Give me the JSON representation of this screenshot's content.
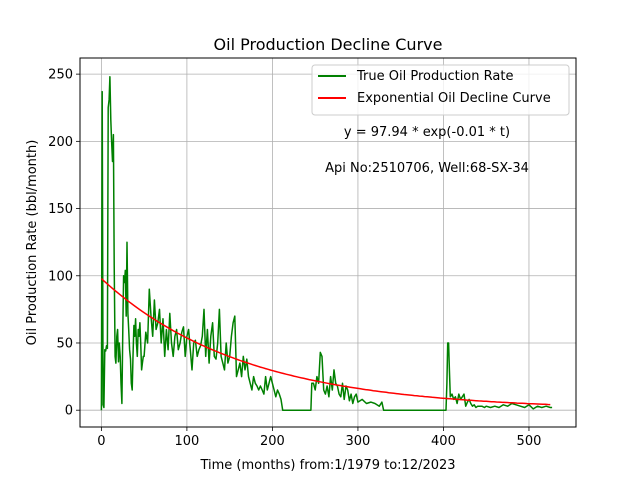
{
  "chart_data": {
    "type": "line",
    "title": "Oil Production Decline Curve",
    "xlabel": "Time (months) from:1/1979 to:12/2023",
    "ylabel": "Oil Production Rate (bbl/month)",
    "xlim": [
      -25,
      555
    ],
    "ylim": [
      -12.5,
      262
    ],
    "xticks": [
      0,
      100,
      200,
      300,
      400,
      500
    ],
    "yticks": [
      0,
      50,
      100,
      150,
      200,
      250
    ],
    "grid": true,
    "legend_placement": "top-right",
    "annotations": [
      "y = 97.94 * exp(-0.01 * t)",
      "Api No:2510706, Well:68-SX-34"
    ],
    "fit": {
      "a": 97.94,
      "b": 0.006,
      "t_start": 0,
      "t_end": 527
    },
    "series": [
      {
        "name": "True Oil Production Rate",
        "color": "#008000",
        "points": [
          [
            0,
            0
          ],
          [
            1,
            237
          ],
          [
            2,
            4
          ],
          [
            3,
            2
          ],
          [
            4,
            45
          ],
          [
            5,
            44
          ],
          [
            6,
            48
          ],
          [
            7,
            46
          ],
          [
            8,
            225
          ],
          [
            9,
            231
          ],
          [
            10,
            248
          ],
          [
            11,
            216
          ],
          [
            12,
            200
          ],
          [
            13,
            185
          ],
          [
            14,
            205
          ],
          [
            15,
            108
          ],
          [
            16,
            40
          ],
          [
            17,
            35
          ],
          [
            18,
            55
          ],
          [
            19,
            60
          ],
          [
            20,
            36
          ],
          [
            21,
            50
          ],
          [
            22,
            40
          ],
          [
            23,
            20
          ],
          [
            24,
            5
          ],
          [
            25,
            60
          ],
          [
            26,
            100
          ],
          [
            27,
            95
          ],
          [
            28,
            104
          ],
          [
            29,
            70
          ],
          [
            30,
            125
          ],
          [
            31,
            72
          ],
          [
            32,
            60
          ],
          [
            33,
            45
          ],
          [
            34,
            38
          ],
          [
            35,
            20
          ],
          [
            36,
            15
          ],
          [
            37,
            40
          ],
          [
            38,
            63
          ],
          [
            39,
            55
          ],
          [
            40,
            68
          ],
          [
            41,
            50
          ],
          [
            42,
            40
          ],
          [
            43,
            60
          ],
          [
            44,
            55
          ],
          [
            45,
            65
          ],
          [
            46,
            50
          ],
          [
            47,
            30
          ],
          [
            48,
            35
          ],
          [
            49,
            40
          ],
          [
            50,
            40
          ],
          [
            52,
            58
          ],
          [
            54,
            50
          ],
          [
            56,
            90
          ],
          [
            58,
            70
          ],
          [
            60,
            55
          ],
          [
            62,
            82
          ],
          [
            64,
            60
          ],
          [
            66,
            65
          ],
          [
            68,
            75
          ],
          [
            70,
            50
          ],
          [
            72,
            68
          ],
          [
            74,
            40
          ],
          [
            76,
            60
          ],
          [
            78,
            45
          ],
          [
            80,
            72
          ],
          [
            82,
            50
          ],
          [
            84,
            40
          ],
          [
            86,
            55
          ],
          [
            88,
            60
          ],
          [
            90,
            45
          ],
          [
            92,
            50
          ],
          [
            94,
            58
          ],
          [
            96,
            62
          ],
          [
            98,
            40
          ],
          [
            100,
            55
          ],
          [
            102,
            60
          ],
          [
            104,
            45
          ],
          [
            106,
            30
          ],
          [
            108,
            50
          ],
          [
            110,
            52
          ],
          [
            112,
            40
          ],
          [
            114,
            45
          ],
          [
            116,
            48
          ],
          [
            118,
            55
          ],
          [
            120,
            75
          ],
          [
            122,
            40
          ],
          [
            124,
            60
          ],
          [
            126,
            35
          ],
          [
            128,
            55
          ],
          [
            130,
            65
          ],
          [
            132,
            40
          ],
          [
            134,
            38
          ],
          [
            136,
            50
          ],
          [
            138,
            75
          ],
          [
            140,
            40
          ],
          [
            142,
            35
          ],
          [
            144,
            30
          ],
          [
            146,
            50
          ],
          [
            148,
            35
          ],
          [
            150,
            40
          ],
          [
            152,
            55
          ],
          [
            154,
            65
          ],
          [
            156,
            70
          ],
          [
            158,
            25
          ],
          [
            160,
            30
          ],
          [
            162,
            35
          ],
          [
            164,
            25
          ],
          [
            166,
            40
          ],
          [
            168,
            30
          ],
          [
            170,
            38
          ],
          [
            172,
            25
          ],
          [
            174,
            20
          ],
          [
            176,
            15
          ],
          [
            178,
            25
          ],
          [
            180,
            20
          ],
          [
            182,
            18
          ],
          [
            184,
            15
          ],
          [
            186,
            18
          ],
          [
            188,
            15
          ],
          [
            190,
            12
          ],
          [
            192,
            25
          ],
          [
            194,
            15
          ],
          [
            196,
            20
          ],
          [
            198,
            25
          ],
          [
            200,
            20
          ],
          [
            202,
            15
          ],
          [
            204,
            10
          ],
          [
            206,
            15
          ],
          [
            208,
            12
          ],
          [
            210,
            8
          ],
          [
            212,
            0
          ],
          [
            230,
            0
          ],
          [
            245,
            0
          ],
          [
            246,
            20
          ],
          [
            248,
            20
          ],
          [
            250,
            15
          ],
          [
            252,
            25
          ],
          [
            254,
            20
          ],
          [
            256,
            43
          ],
          [
            258,
            40
          ],
          [
            260,
            15
          ],
          [
            262,
            12
          ],
          [
            264,
            18
          ],
          [
            266,
            10
          ],
          [
            268,
            25
          ],
          [
            270,
            15
          ],
          [
            272,
            30
          ],
          [
            274,
            20
          ],
          [
            276,
            18
          ],
          [
            278,
            12
          ],
          [
            280,
            10
          ],
          [
            282,
            20
          ],
          [
            284,
            8
          ],
          [
            286,
            18
          ],
          [
            288,
            15
          ],
          [
            290,
            7
          ],
          [
            292,
            12
          ],
          [
            294,
            5
          ],
          [
            296,
            10
          ],
          [
            298,
            12
          ],
          [
            300,
            6
          ],
          [
            305,
            8
          ],
          [
            310,
            5
          ],
          [
            315,
            6
          ],
          [
            320,
            5
          ],
          [
            325,
            3
          ],
          [
            328,
            6
          ],
          [
            330,
            0
          ],
          [
            340,
            0
          ],
          [
            360,
            0
          ],
          [
            380,
            0
          ],
          [
            403,
            0
          ],
          [
            404,
            20
          ],
          [
            405,
            50
          ],
          [
            406,
            50
          ],
          [
            407,
            30
          ],
          [
            408,
            10
          ],
          [
            410,
            12
          ],
          [
            412,
            8
          ],
          [
            414,
            10
          ],
          [
            416,
            5
          ],
          [
            418,
            12
          ],
          [
            420,
            8
          ],
          [
            422,
            10
          ],
          [
            424,
            12
          ],
          [
            426,
            3
          ],
          [
            428,
            6
          ],
          [
            430,
            8
          ],
          [
            432,
            5
          ],
          [
            434,
            3
          ],
          [
            436,
            4
          ],
          [
            438,
            2
          ],
          [
            440,
            3
          ],
          [
            442,
            3
          ],
          [
            445,
            3
          ],
          [
            448,
            2
          ],
          [
            450,
            3
          ],
          [
            455,
            2
          ],
          [
            460,
            3
          ],
          [
            465,
            2
          ],
          [
            470,
            4
          ],
          [
            475,
            3
          ],
          [
            480,
            5
          ],
          [
            485,
            4
          ],
          [
            490,
            3
          ],
          [
            495,
            2
          ],
          [
            500,
            4
          ],
          [
            505,
            1
          ],
          [
            510,
            3
          ],
          [
            515,
            2
          ],
          [
            520,
            3
          ],
          [
            525,
            2
          ],
          [
            527,
            2
          ]
        ]
      },
      {
        "name": "Exponential Oil Decline Curve",
        "color": "#ff0000"
      }
    ]
  }
}
